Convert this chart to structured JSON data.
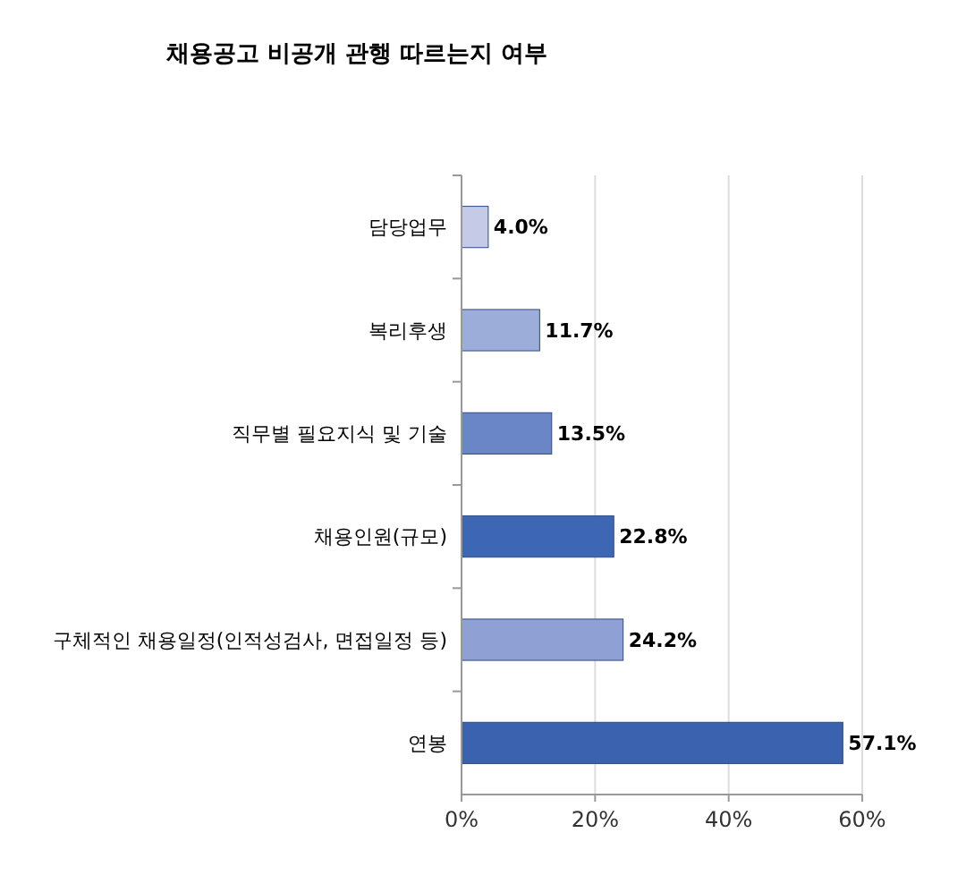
{
  "chart_data": {
    "type": "bar",
    "orientation": "horizontal",
    "title": "채용공고 비공개 관행 따르는지 여부",
    "categories": [
      "담당업무",
      "복리후생",
      "직무별 필요지식 및 기술",
      "채용인원(규모)",
      "구체적인 채용일정(인적성검사, 면접일정 등)",
      "연봉"
    ],
    "values": [
      4.0,
      11.7,
      13.5,
      22.8,
      24.2,
      57.1
    ],
    "colors": [
      "#c5cbe6",
      "#9dadd9",
      "#6b86c7",
      "#3d67b5",
      "#8fa0d4",
      "#3a62ae"
    ],
    "value_labels": [
      "4.0%",
      "11.7%",
      "13.5%",
      "22.8%",
      "24.2%",
      "57.1%"
    ],
    "xlim": [
      0,
      60
    ],
    "xticks": [
      {
        "value": 0,
        "label": "0%"
      },
      {
        "value": 20,
        "label": "20%"
      },
      {
        "value": 40,
        "label": "40%"
      },
      {
        "value": 60,
        "label": "60%"
      }
    ],
    "grid": "x"
  }
}
